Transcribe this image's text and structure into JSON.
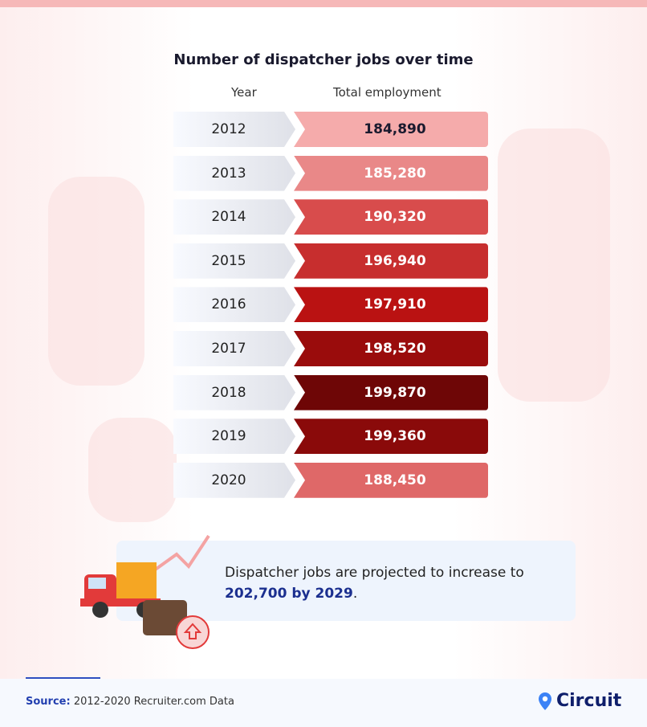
{
  "chart_data": {
    "type": "table",
    "title": "Number of dispatcher jobs over time",
    "columns": [
      "Year",
      "Total employment"
    ],
    "rows": [
      {
        "year": "2012",
        "value": "184,890",
        "color": "#f5abab",
        "text": "#1a1a2e"
      },
      {
        "year": "2013",
        "value": "185,280",
        "color": "#e98888",
        "text": "#ffffff"
      },
      {
        "year": "2014",
        "value": "190,320",
        "color": "#d84c4c",
        "text": "#ffffff"
      },
      {
        "year": "2015",
        "value": "196,940",
        "color": "#c72e2e",
        "text": "#ffffff"
      },
      {
        "year": "2016",
        "value": "197,910",
        "color": "#ba1212",
        "text": "#ffffff"
      },
      {
        "year": "2017",
        "value": "198,520",
        "color": "#9a0c0c",
        "text": "#ffffff"
      },
      {
        "year": "2018",
        "value": "199,870",
        "color": "#6e0606",
        "text": "#ffffff"
      },
      {
        "year": "2019",
        "value": "199,360",
        "color": "#8a0a0a",
        "text": "#ffffff"
      },
      {
        "year": "2020",
        "value": "188,450",
        "color": "#df6868",
        "text": "#ffffff"
      }
    ]
  },
  "note": {
    "text": "Dispatcher jobs are projected to increase to",
    "highlight": "202,700 by 2029",
    "end": "."
  },
  "footer": {
    "source_label": "Source:",
    "source_text": " 2012-2020 Recruiter.com Data",
    "brand": "Circuit"
  }
}
